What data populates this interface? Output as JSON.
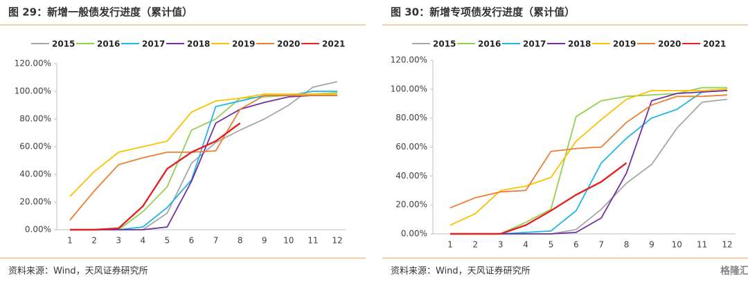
{
  "chart_data": [
    {
      "type": "line",
      "title": "图 29：新增一般债发行进度（累计值）",
      "source": "资料来源：Wind，天风证券研究所",
      "categories": [
        "1",
        "2",
        "3",
        "4",
        "5",
        "6",
        "7",
        "8",
        "9",
        "10",
        "11",
        "12"
      ],
      "ylim": [
        0,
        120
      ],
      "yticks": [
        {
          "value": 0,
          "label": "0.00%"
        },
        {
          "value": 20,
          "label": "20.00%"
        },
        {
          "value": 40,
          "label": "40.00%"
        },
        {
          "value": 60,
          "label": "60.00%"
        },
        {
          "value": 80,
          "label": "80.00%"
        },
        {
          "value": 100,
          "label": "100.00%"
        },
        {
          "value": 120,
          "label": "120.00%"
        }
      ],
      "series": [
        {
          "name": "2015",
          "color": "#a6a6a6",
          "values": [
            0,
            0,
            0,
            0,
            12,
            48,
            63,
            72,
            80,
            90,
            103,
            107
          ]
        },
        {
          "name": "2016",
          "color": "#92d050",
          "values": [
            0,
            0,
            0,
            13,
            31,
            72,
            80,
            95,
            96,
            97,
            98,
            99
          ]
        },
        {
          "name": "2017",
          "color": "#1eb4e6",
          "values": [
            0,
            0,
            0,
            2,
            16,
            36,
            89,
            93,
            97,
            97,
            100,
            100
          ]
        },
        {
          "name": "2018",
          "color": "#7030a0",
          "values": [
            0,
            0,
            0,
            0,
            2,
            35,
            77,
            87,
            92,
            96,
            97,
            97
          ]
        },
        {
          "name": "2019",
          "color": "#ffc000",
          "values": [
            24,
            42,
            56,
            60,
            64,
            85,
            93,
            95,
            98,
            98,
            98,
            98
          ]
        },
        {
          "name": "2020",
          "color": "#ed7d31",
          "values": [
            7,
            28,
            47,
            52,
            56,
            56,
            57,
            87,
            97,
            97,
            97,
            97
          ]
        },
        {
          "name": "2021",
          "color": "#e42020",
          "values": [
            0,
            0,
            1,
            17,
            44,
            56,
            64,
            77,
            null,
            null,
            null,
            null
          ]
        }
      ]
    },
    {
      "type": "line",
      "title": "图 30：新增专项债发行进度（累计值）",
      "source": "资料来源：Wind，天风证券研究所",
      "categories": [
        "1",
        "2",
        "3",
        "4",
        "5",
        "6",
        "7",
        "8",
        "9",
        "10",
        "11",
        "12"
      ],
      "ylim": [
        0,
        120
      ],
      "yticks": [
        {
          "value": 0,
          "label": "0.00%"
        },
        {
          "value": 20,
          "label": "20.00%"
        },
        {
          "value": 40,
          "label": "40.00%"
        },
        {
          "value": 60,
          "label": "60.00%"
        },
        {
          "value": 80,
          "label": "80.00%"
        },
        {
          "value": 100,
          "label": "100.00%"
        },
        {
          "value": 120,
          "label": "120.00%"
        }
      ],
      "series": [
        {
          "name": "2015",
          "color": "#a6a6a6",
          "values": [
            0,
            0,
            0,
            0,
            0,
            3,
            17,
            35,
            48,
            73,
            91,
            93
          ]
        },
        {
          "name": "2016",
          "color": "#92d050",
          "values": [
            0,
            0,
            0,
            8,
            17,
            81,
            92,
            95,
            96,
            97,
            101,
            101
          ]
        },
        {
          "name": "2017",
          "color": "#1eb4e6",
          "values": [
            0,
            0,
            0,
            1,
            2,
            16,
            49,
            66,
            80,
            86,
            98,
            99
          ]
        },
        {
          "name": "2018",
          "color": "#7030a0",
          "values": [
            0,
            0,
            0,
            0,
            0,
            1,
            11,
            42,
            92,
            97,
            98,
            99
          ]
        },
        {
          "name": "2019",
          "color": "#ffc000",
          "values": [
            6,
            14,
            30,
            33,
            39,
            64,
            79,
            93,
            99,
            99,
            99,
            100
          ]
        },
        {
          "name": "2020",
          "color": "#ed7d31",
          "values": [
            18,
            25,
            29,
            30,
            57,
            59,
            60,
            77,
            89,
            95,
            95,
            96
          ]
        },
        {
          "name": "2021",
          "color": "#e42020",
          "values": [
            0,
            0,
            0,
            6,
            16,
            27,
            36,
            49,
            null,
            null,
            null,
            null
          ]
        }
      ]
    }
  ],
  "watermark": "格隆汇"
}
